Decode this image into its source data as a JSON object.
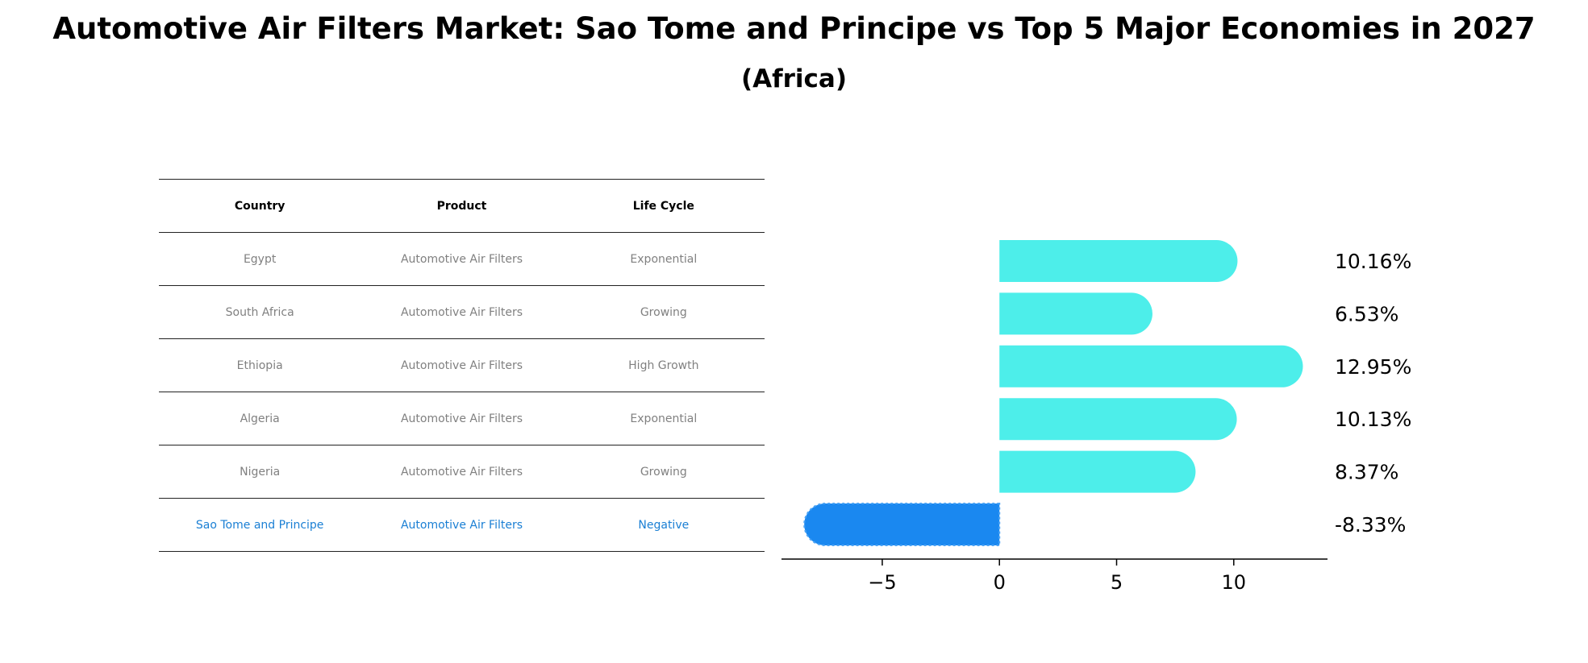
{
  "title": "Automotive Air Filters Market: Sao Tome and Principe vs Top 5 Major Economies in 2027",
  "subtitle": "(Africa)",
  "table": {
    "headers": [
      "Country",
      "Product",
      "Life Cycle"
    ],
    "rows": [
      [
        "Egypt",
        "Automotive Air Filters",
        "Exponential"
      ],
      [
        "South Africa",
        "Automotive Air Filters",
        "Growing"
      ],
      [
        "Ethiopia",
        "Automotive Air Filters",
        "High Growth"
      ],
      [
        "Algeria",
        "Automotive Air Filters",
        "Exponential"
      ],
      [
        "Nigeria",
        "Automotive Air Filters",
        "Growing"
      ],
      [
        "Sao Tome and Principe",
        "Automotive Air Filters",
        "Negative"
      ]
    ]
  },
  "colors": {
    "bar": "#4deeea",
    "highlight_bar": "#1a88f0",
    "highlight_text": "#1a7fd4",
    "muted_text": "#808080"
  },
  "chart_data": {
    "type": "bar",
    "orientation": "horizontal",
    "categories": [
      "Egypt",
      "South Africa",
      "Ethiopia",
      "Algeria",
      "Nigeria",
      "Sao Tome and Principe"
    ],
    "values": [
      10.16,
      6.53,
      12.95,
      10.13,
      8.37,
      -8.33
    ],
    "value_labels": [
      "10.16%",
      "6.53%",
      "12.95%",
      "10.13%",
      "8.37%",
      "-8.33%"
    ],
    "highlight_index": 5,
    "xlim": [
      -9.3,
      14
    ],
    "xticks": [
      -5,
      0,
      5,
      10
    ],
    "xtick_labels": [
      "−5",
      "0",
      "5",
      "10"
    ]
  }
}
